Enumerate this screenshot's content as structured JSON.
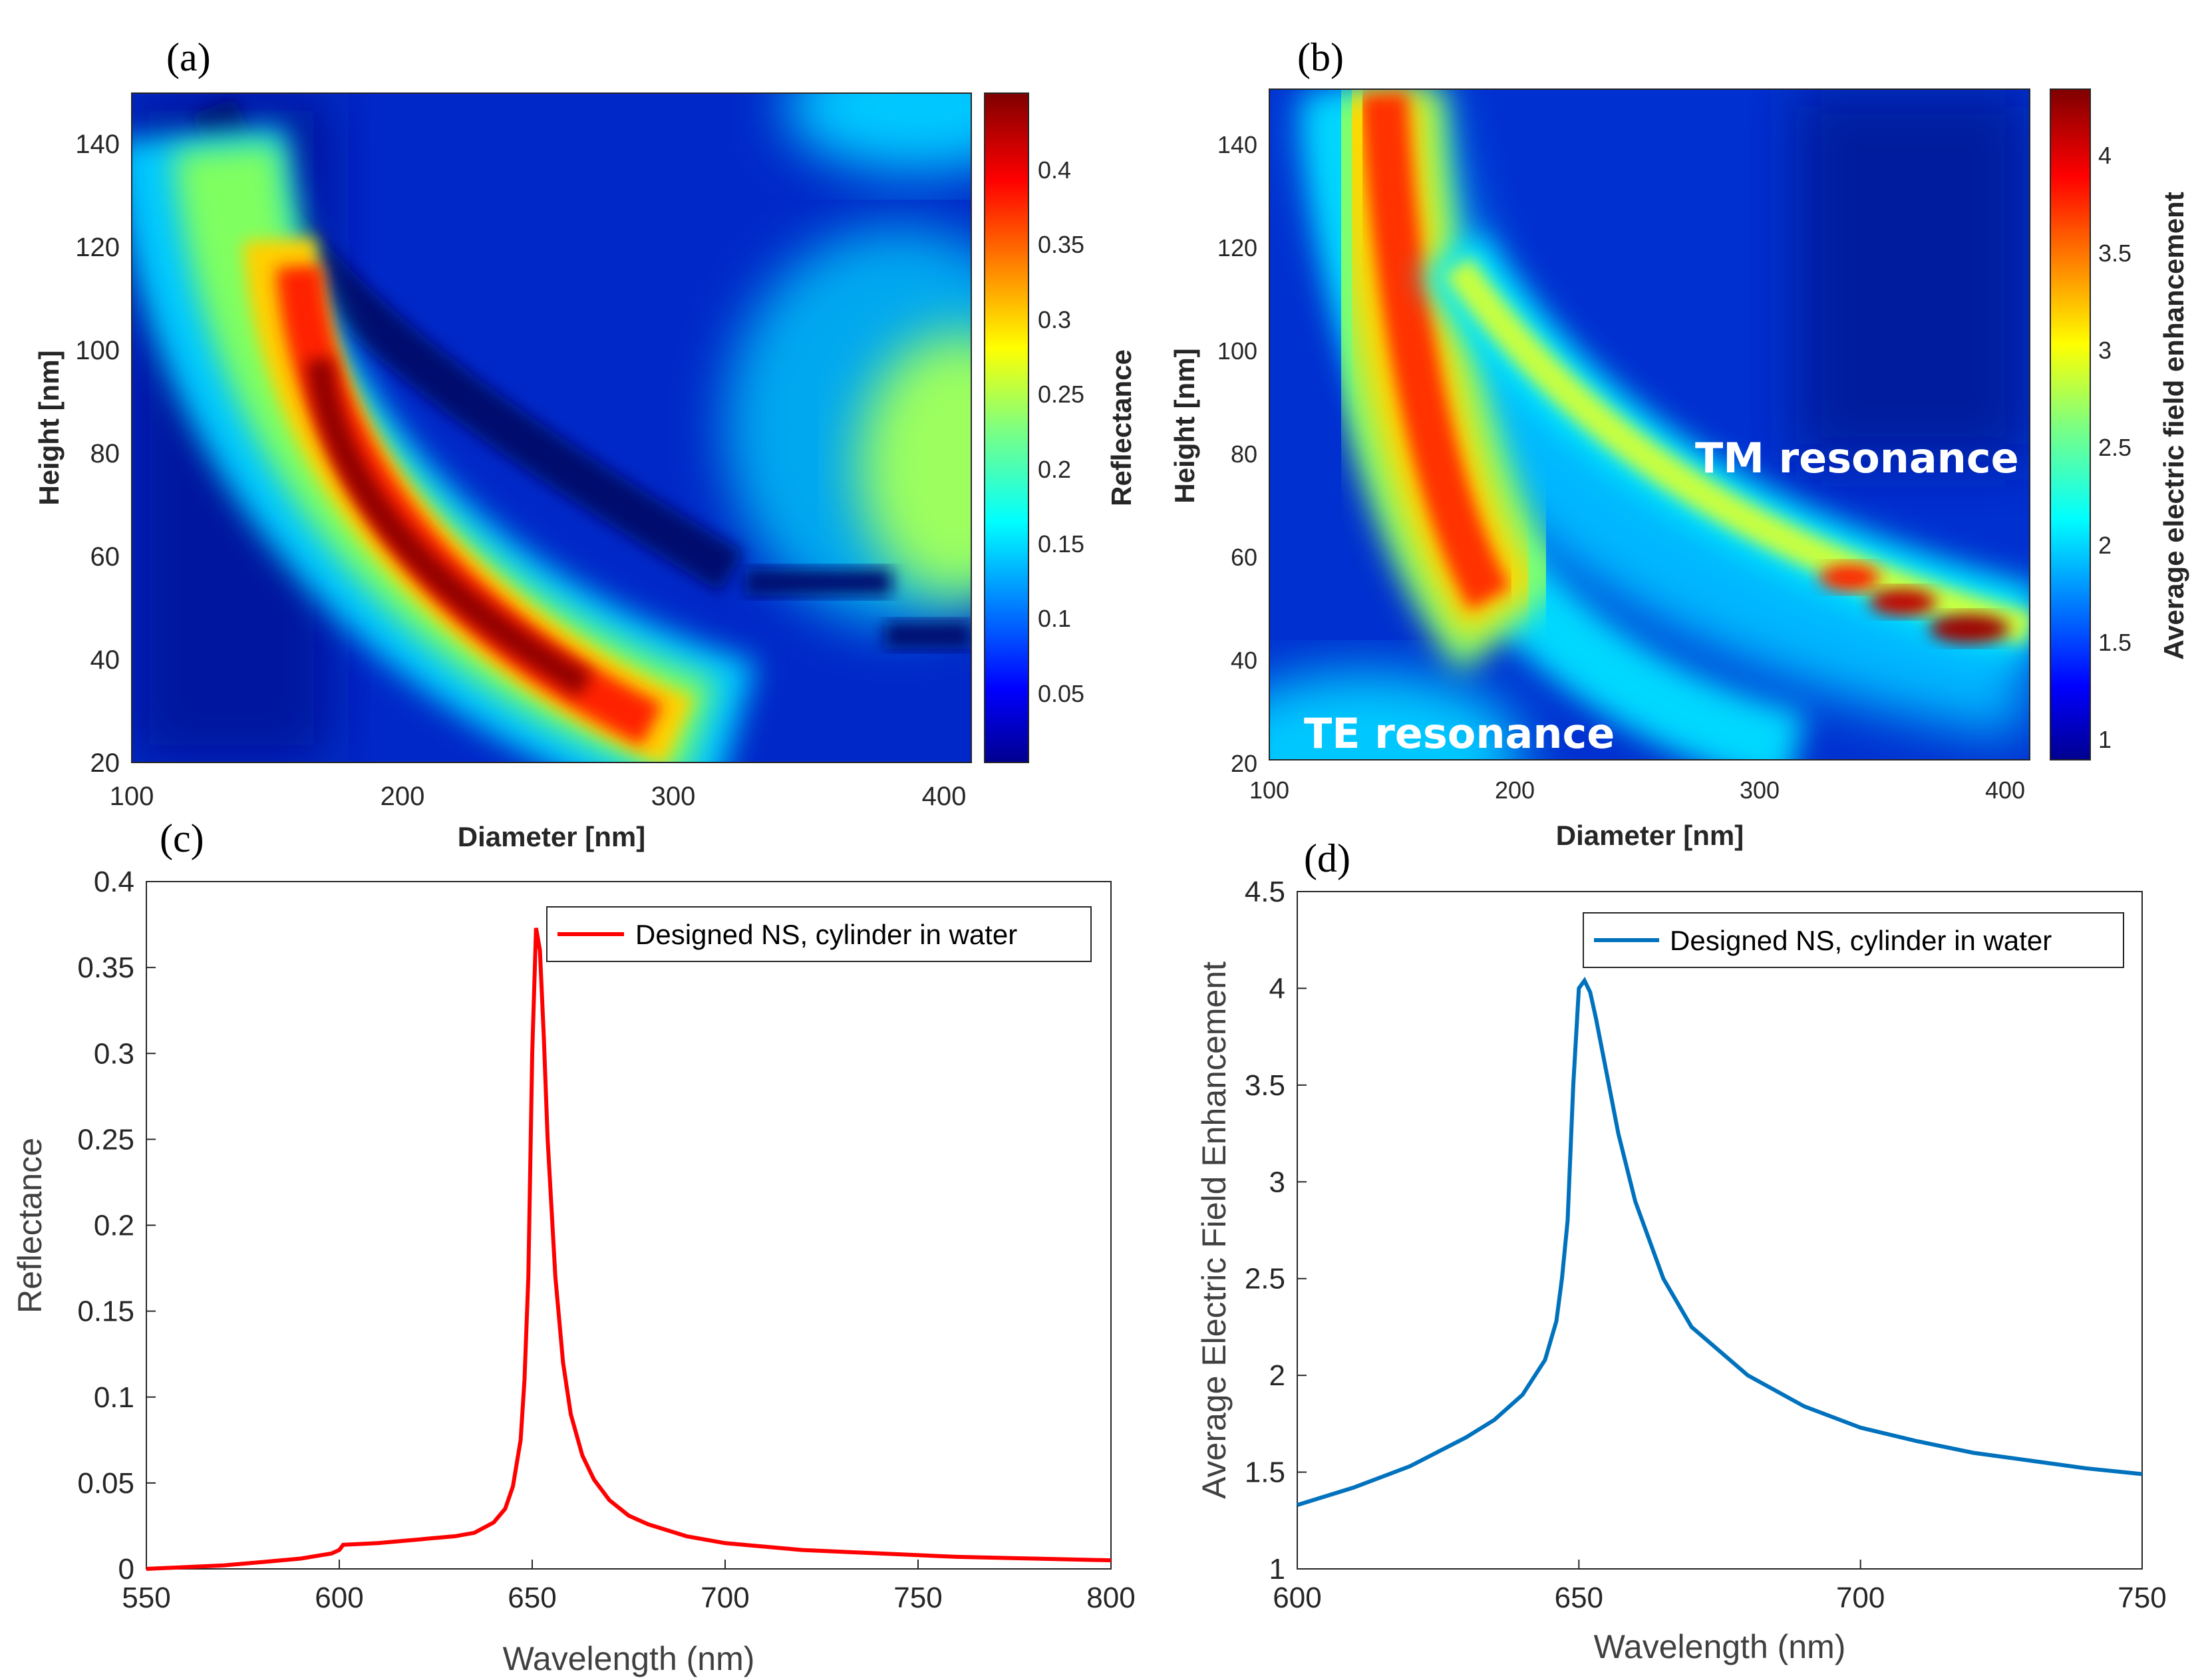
{
  "chart_data": [
    {
      "panel": "(a)",
      "type": "heatmap",
      "xlabel": "Diameter [nm]",
      "ylabel": "Height [nm]",
      "xlim": [
        100,
        410
      ],
      "ylim": [
        20,
        150
      ],
      "xticks": [
        "100",
        "200",
        "300",
        "400"
      ],
      "yticks": [
        "20",
        "40",
        "60",
        "80",
        "100",
        "120",
        "140"
      ],
      "colorbar": {
        "label": "Reflectance",
        "range": [
          0.0,
          0.445
        ],
        "ticks": [
          "0.05",
          "0.1",
          "0.15",
          "0.2",
          "0.25",
          "0.3",
          "0.35",
          "0.4"
        ]
      },
      "annotations": []
    },
    {
      "panel": "(b)",
      "type": "heatmap",
      "xlabel": "Diameter [nm]",
      "ylabel": "Height [nm]",
      "xlim": [
        100,
        410
      ],
      "ylim": [
        20,
        150
      ],
      "xticks": [
        "100",
        "200",
        "300",
        "400"
      ],
      "yticks": [
        "20",
        "40",
        "60",
        "80",
        "100",
        "120",
        "140"
      ],
      "colorbar": {
        "label": "Average electric field enhancement",
        "range": [
          0.9,
          4.35
        ],
        "ticks": [
          "1",
          "1.5",
          "2",
          "2.5",
          "3",
          "3.5",
          "4"
        ]
      },
      "annotations": [
        "TM resonance",
        "TE resonance"
      ]
    },
    {
      "panel": "(c)",
      "type": "line",
      "xlabel": "Wavelength (nm)",
      "ylabel": "Reflectance",
      "xlim": [
        550,
        800
      ],
      "ylim": [
        0,
        0.4
      ],
      "xticks": [
        "550",
        "600",
        "650",
        "700",
        "750",
        "800"
      ],
      "yticks": [
        "0",
        "0.05",
        "0.1",
        "0.15",
        "0.2",
        "0.25",
        "0.3",
        "0.35",
        "0.4"
      ],
      "legend": "top-right",
      "series": [
        {
          "name": "Designed NS, cylinder in water",
          "color": "#ff0000",
          "x": [
            550,
            560,
            570,
            580,
            590,
            598,
            600,
            601,
            610,
            620,
            630,
            635,
            640,
            643,
            645,
            647,
            648,
            649,
            650,
            651,
            652,
            653,
            654,
            656,
            658,
            660,
            663,
            666,
            670,
            675,
            680,
            690,
            700,
            720,
            740,
            760,
            780,
            800
          ],
          "y": [
            0.0,
            0.001,
            0.002,
            0.004,
            0.006,
            0.009,
            0.011,
            0.014,
            0.015,
            0.017,
            0.019,
            0.021,
            0.027,
            0.035,
            0.048,
            0.075,
            0.11,
            0.17,
            0.3,
            0.373,
            0.36,
            0.31,
            0.25,
            0.17,
            0.12,
            0.09,
            0.066,
            0.052,
            0.04,
            0.031,
            0.026,
            0.019,
            0.015,
            0.011,
            0.009,
            0.007,
            0.006,
            0.005
          ]
        }
      ]
    },
    {
      "panel": "(d)",
      "type": "line",
      "xlabel": "Wavelength (nm)",
      "ylabel": "Average Electric Field Enhancement",
      "xlim": [
        600,
        750
      ],
      "ylim": [
        1,
        4.5
      ],
      "xticks": [
        "600",
        "650",
        "700",
        "750"
      ],
      "yticks": [
        "1",
        "1.5",
        "2",
        "2.5",
        "3",
        "3.5",
        "4",
        "4.5"
      ],
      "legend": "top-right",
      "series": [
        {
          "name": "Designed NS, cylinder in water",
          "color": "#0072bd",
          "x": [
            600,
            610,
            620,
            630,
            635,
            640,
            644,
            646,
            647,
            648,
            649,
            650,
            651,
            652,
            653,
            655,
            657,
            660,
            665,
            670,
            680,
            690,
            700,
            710,
            720,
            730,
            740,
            750
          ],
          "y": [
            1.33,
            1.42,
            1.53,
            1.68,
            1.77,
            1.9,
            2.08,
            2.28,
            2.5,
            2.8,
            3.5,
            4.0,
            4.04,
            3.98,
            3.85,
            3.55,
            3.25,
            2.9,
            2.5,
            2.25,
            2.0,
            1.84,
            1.73,
            1.66,
            1.6,
            1.56,
            1.52,
            1.49
          ]
        }
      ]
    }
  ]
}
